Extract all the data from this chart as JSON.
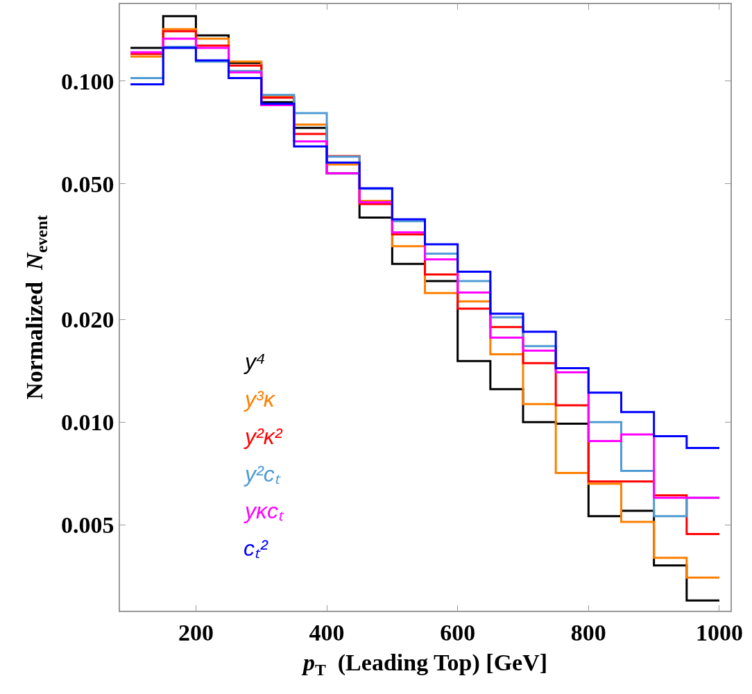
{
  "chart_data": {
    "type": "histogram",
    "xlabel": "p$_{T}$  (Leading Top) [GeV]",
    "ylabel": "Normalized  N$_{event}$",
    "bins": [
      100,
      150,
      200,
      250,
      300,
      350,
      400,
      450,
      500,
      550,
      600,
      650,
      700,
      750,
      800,
      850,
      900,
      950,
      1000
    ],
    "series": [
      {
        "name": "y⁴",
        "color": "#000000",
        "values": [
          0.125,
          0.155,
          0.136,
          0.113,
          0.0867,
          0.0729,
          0.0536,
          0.0398,
          0.0291,
          0.0259,
          0.0151,
          0.0125,
          0.01,
          0.0099,
          0.0053,
          0.0055,
          0.0038,
          0.003
        ]
      },
      {
        "name": "y³κ",
        "color": "#ff7f00",
        "values": [
          0.118,
          0.142,
          0.133,
          0.114,
          0.09,
          0.0745,
          0.0569,
          0.0445,
          0.0328,
          0.0239,
          0.0226,
          0.0158,
          0.0113,
          0.0071,
          0.0066,
          0.0051,
          0.004,
          0.0035
        ]
      },
      {
        "name": "y²κ²",
        "color": "#ff0000",
        "values": [
          0.12,
          0.14,
          0.127,
          0.111,
          0.0894,
          0.07,
          0.0602,
          0.0436,
          0.0355,
          0.0271,
          0.0215,
          0.019,
          0.0149,
          0.0112,
          0.0067,
          0.0067,
          0.0061,
          0.0047
        ]
      },
      {
        "name": "y²cₜ",
        "color": "#4f9bd3",
        "values": [
          0.102,
          0.126,
          0.114,
          0.107,
          0.0911,
          0.0805,
          0.06,
          0.0483,
          0.0388,
          0.0312,
          0.0259,
          0.0203,
          0.0167,
          0.0144,
          0.01,
          0.0072,
          0.0053,
          0.006
        ]
      },
      {
        "name": "yκcₜ",
        "color": "#ff00ff",
        "values": [
          0.1215,
          0.133,
          0.125,
          0.106,
          0.085,
          0.0665,
          0.0536,
          0.0441,
          0.036,
          0.03,
          0.024,
          0.0177,
          0.0162,
          0.014,
          0.0088,
          0.0092,
          0.006,
          0.006
        ]
      },
      {
        "name": "cₜ²",
        "color": "#0000ff",
        "values": [
          0.0978,
          0.125,
          0.115,
          0.102,
          0.0858,
          0.0643,
          0.0577,
          0.0485,
          0.0393,
          0.0332,
          0.0276,
          0.0208,
          0.0184,
          0.0144,
          0.0122,
          0.0107,
          0.0091,
          0.0084
        ]
      }
    ],
    "xlim": [
      84,
      1017
    ],
    "xticks": [
      200,
      400,
      600,
      800,
      1000
    ],
    "ylim": [
      0.0028,
      0.168
    ],
    "log": true,
    "yticks": [
      {
        "value": 0.005,
        "label": "0.005"
      },
      {
        "value": 0.01,
        "label": "0.010"
      },
      {
        "value": 0.02,
        "label": "0.020"
      },
      {
        "value": 0.05,
        "label": "0.050"
      },
      {
        "value": 0.1,
        "label": "0.100"
      }
    ],
    "legend": "bottom left"
  }
}
